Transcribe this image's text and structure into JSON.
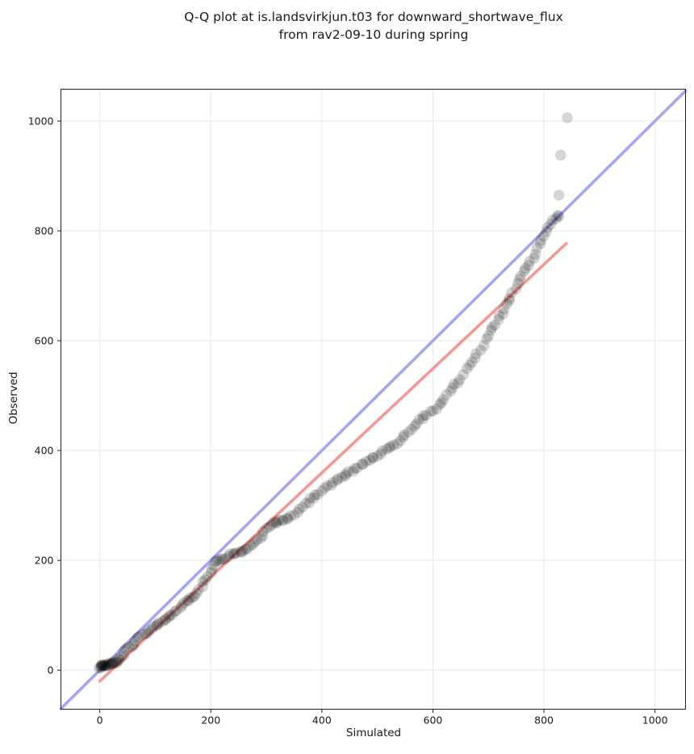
{
  "figure": {
    "background": "#ffffff",
    "text_color": "#1a1a1a"
  },
  "chart_data": {
    "type": "scatter",
    "title_lines": [
      "Q-Q plot at is.landsvirkjun.t03 for downward_shortwave_flux",
      "from rav2-09-10 during spring"
    ],
    "xlabel": "Simulated",
    "ylabel": "Observed",
    "xlim": [
      -70,
      1055
    ],
    "ylim": [
      -71,
      1058
    ],
    "xticks": [
      0,
      200,
      400,
      600,
      800,
      1000
    ],
    "yticks": [
      0,
      200,
      400,
      600,
      800,
      1000
    ],
    "grid": true,
    "grid_color": "#eaeaea",
    "spine_color": "#1f1f1f",
    "legend": "none",
    "identity_line": {
      "color": "#a6a6f2",
      "width": 3.6,
      "from": [
        -70,
        -70
      ],
      "to": [
        1055,
        1055
      ]
    },
    "trend_line": {
      "color": "#f59898",
      "width": 3.6,
      "from": [
        0,
        -20
      ],
      "to": [
        840,
        777
      ]
    },
    "series": [
      {
        "name": "quantile-points",
        "marker_color": "#000000",
        "marker_alpha": 0.16,
        "marker_radius": 6.8,
        "points": [
          [
            0,
            5
          ],
          [
            1,
            6
          ],
          [
            2,
            6
          ],
          [
            3,
            7
          ],
          [
            4,
            7
          ],
          [
            5,
            8
          ],
          [
            6,
            8
          ],
          [
            7,
            9
          ],
          [
            8,
            9
          ],
          [
            9,
            9
          ],
          [
            10,
            10
          ],
          [
            12,
            10
          ],
          [
            13,
            10
          ],
          [
            15,
            11
          ],
          [
            17,
            11
          ],
          [
            19,
            12
          ],
          [
            21,
            12
          ],
          [
            23,
            12
          ],
          [
            25,
            13
          ],
          [
            27,
            13
          ],
          [
            29,
            14
          ],
          [
            31,
            15
          ],
          [
            34,
            18
          ],
          [
            37,
            21
          ],
          [
            40,
            25
          ],
          [
            43,
            29
          ],
          [
            46,
            33
          ],
          [
            49,
            37
          ],
          [
            52,
            41
          ],
          [
            56,
            45
          ],
          [
            60,
            49
          ],
          [
            64,
            53
          ],
          [
            68,
            57
          ],
          [
            72,
            60
          ],
          [
            76,
            63
          ],
          [
            80,
            66
          ],
          [
            84,
            70
          ],
          [
            88,
            73
          ],
          [
            92,
            77
          ],
          [
            96,
            80
          ],
          [
            100,
            82
          ],
          [
            104,
            84
          ],
          [
            108,
            86
          ],
          [
            112,
            88
          ],
          [
            116,
            91
          ],
          [
            120,
            94
          ],
          [
            124,
            97
          ],
          [
            128,
            100
          ],
          [
            132,
            103
          ],
          [
            136,
            106
          ],
          [
            140,
            110
          ],
          [
            144,
            114
          ],
          [
            148,
            118
          ],
          [
            152,
            122
          ],
          [
            156,
            125
          ],
          [
            160,
            128
          ],
          [
            164,
            130
          ],
          [
            168,
            133
          ],
          [
            172,
            137
          ],
          [
            176,
            142
          ],
          [
            180,
            148
          ],
          [
            184,
            154
          ],
          [
            188,
            160
          ],
          [
            192,
            166
          ],
          [
            196,
            171
          ],
          [
            200,
            177
          ],
          [
            203,
            183
          ],
          [
            206,
            190
          ],
          [
            209,
            196
          ],
          [
            212,
            198
          ],
          [
            216,
            200
          ],
          [
            220,
            202
          ],
          [
            224,
            204
          ],
          [
            228,
            206
          ],
          [
            232,
            208
          ],
          [
            236,
            210
          ],
          [
            240,
            211
          ],
          [
            244,
            212
          ],
          [
            248,
            213
          ],
          [
            252,
            215
          ],
          [
            256,
            216
          ],
          [
            260,
            218
          ],
          [
            264,
            221
          ],
          [
            268,
            224
          ],
          [
            272,
            228
          ],
          [
            276,
            231
          ],
          [
            280,
            234
          ],
          [
            284,
            238
          ],
          [
            288,
            242
          ],
          [
            292,
            247
          ],
          [
            296,
            252
          ],
          [
            300,
            257
          ],
          [
            304,
            261
          ],
          [
            308,
            264
          ],
          [
            312,
            267
          ],
          [
            316,
            269
          ],
          [
            320,
            270
          ],
          [
            324,
            271
          ],
          [
            328,
            272
          ],
          [
            332,
            272
          ],
          [
            336,
            273
          ],
          [
            340,
            276
          ],
          [
            345,
            281
          ],
          [
            350,
            285
          ],
          [
            355,
            290
          ],
          [
            360,
            295
          ],
          [
            365,
            299
          ],
          [
            370,
            303
          ],
          [
            375,
            307
          ],
          [
            380,
            311
          ],
          [
            385,
            314
          ],
          [
            390,
            318
          ],
          [
            395,
            322
          ],
          [
            400,
            327
          ],
          [
            405,
            332
          ],
          [
            410,
            335
          ],
          [
            415,
            337
          ],
          [
            420,
            340
          ],
          [
            425,
            344
          ],
          [
            430,
            348
          ],
          [
            435,
            351
          ],
          [
            440,
            353
          ],
          [
            445,
            356
          ],
          [
            450,
            360
          ],
          [
            455,
            364
          ],
          [
            460,
            367
          ],
          [
            465,
            370
          ],
          [
            470,
            373
          ],
          [
            475,
            375
          ],
          [
            480,
            378
          ],
          [
            485,
            382
          ],
          [
            490,
            386
          ],
          [
            495,
            389
          ],
          [
            500,
            392
          ],
          [
            505,
            395
          ],
          [
            510,
            398
          ],
          [
            515,
            401
          ],
          [
            520,
            404
          ],
          [
            525,
            408
          ],
          [
            530,
            411
          ],
          [
            535,
            415
          ],
          [
            540,
            420
          ],
          [
            545,
            425
          ],
          [
            550,
            430
          ],
          [
            555,
            435
          ],
          [
            560,
            440
          ],
          [
            565,
            445
          ],
          [
            570,
            450
          ],
          [
            575,
            455
          ],
          [
            580,
            459
          ],
          [
            585,
            462
          ],
          [
            590,
            466
          ],
          [
            595,
            470
          ],
          [
            600,
            474
          ],
          [
            605,
            478
          ],
          [
            610,
            483
          ],
          [
            615,
            489
          ],
          [
            620,
            495
          ],
          [
            625,
            501
          ],
          [
            630,
            507
          ],
          [
            635,
            513
          ],
          [
            640,
            519
          ],
          [
            645,
            525
          ],
          [
            650,
            531
          ],
          [
            655,
            539
          ],
          [
            660,
            547
          ],
          [
            665,
            554
          ],
          [
            670,
            560
          ],
          [
            675,
            568
          ],
          [
            680,
            576
          ],
          [
            685,
            584
          ],
          [
            690,
            593
          ],
          [
            695,
            601
          ],
          [
            700,
            610
          ],
          [
            704,
            617
          ],
          [
            708,
            624
          ],
          [
            712,
            630
          ],
          [
            716,
            637
          ],
          [
            720,
            644
          ],
          [
            724,
            651
          ],
          [
            728,
            658
          ],
          [
            732,
            665
          ],
          [
            736,
            672
          ],
          [
            740,
            679
          ],
          [
            744,
            687
          ],
          [
            748,
            694
          ],
          [
            752,
            702
          ],
          [
            756,
            710
          ],
          [
            760,
            718
          ],
          [
            764,
            725
          ],
          [
            768,
            732
          ],
          [
            772,
            739
          ],
          [
            776,
            746
          ],
          [
            780,
            753
          ],
          [
            784,
            760
          ],
          [
            788,
            768
          ],
          [
            792,
            776
          ],
          [
            796,
            784
          ],
          [
            800,
            791
          ],
          [
            804,
            798
          ],
          [
            808,
            806
          ],
          [
            812,
            813
          ],
          [
            816,
            818
          ],
          [
            820,
            822
          ],
          [
            824,
            826
          ],
          [
            828,
            828
          ]
        ]
      }
    ],
    "outlier_points": [
      [
        827,
        865
      ],
      [
        830,
        938
      ],
      [
        842,
        1006
      ]
    ]
  }
}
